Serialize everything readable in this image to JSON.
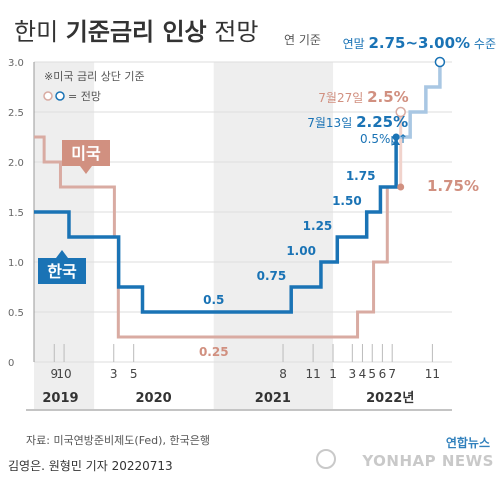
{
  "title": {
    "part1": "한미 ",
    "part2": "기준금리 인상",
    "part3": " 전망"
  },
  "unit_note": "연 기준",
  "legend": {
    "note": "※미국 금리 상단 기준",
    "forecast": "= 전망"
  },
  "series_labels": {
    "us": "미국",
    "korea": "한국"
  },
  "source": "자료: 미국연방준비제도(Fed), 한국은행",
  "byline": "김영은. 원형민 기자  20220713",
  "watermark": {
    "brand": "연합뉴스",
    "text": "YONHAP NEWS"
  },
  "colors": {
    "korea": "#1a73b5",
    "korea_forecast": "#a9c7e3",
    "us": "#d9aba2",
    "us_label_bg": "#d19080",
    "us_forecast": "#f1d3cc",
    "band": "#eeeeee",
    "grid": "#dddddd",
    "text": "#333333"
  },
  "annotations": [
    {
      "key": "kr_2025",
      "date": "2022-07-13",
      "value": 2.25,
      "parts": [
        {
          "t": "7월13일 ",
          "bold": false
        },
        {
          "t": "2.25%",
          "bold": true
        }
      ],
      "color": "#1a73b5"
    },
    {
      "key": "kr_step",
      "date": "2022-07-13",
      "value": 2.25,
      "parts": [
        {
          "t": "0.5%p↑",
          "bold": false
        }
      ],
      "color": "#1a73b5"
    },
    {
      "key": "us_jul",
      "date": "2022-07-27",
      "value": 2.5,
      "parts": [
        {
          "t": "7월27일 ",
          "bold": false
        },
        {
          "t": "2.5%",
          "bold": true
        }
      ],
      "color": "#d19080"
    },
    {
      "key": "year_end",
      "date": "2022-11-15",
      "value": 3.0,
      "parts": [
        {
          "t": "연말 ",
          "bold": false
        },
        {
          "t": "2.75~3.00%",
          "bold": true
        },
        {
          "t": " 수준",
          "bold": false
        }
      ],
      "color": "#1a73b5"
    },
    {
      "key": "us_now",
      "date": "2022-06-15",
      "value": 1.75,
      "parts": [
        {
          "t": "1.75%",
          "bold": true
        }
      ],
      "color": "#d19080"
    }
  ],
  "chart_data": {
    "type": "line",
    "title": "한미 기준금리 인상 전망",
    "ylim": [
      0,
      3.0
    ],
    "yticks": [
      0,
      0.5,
      1.0,
      1.5,
      2.0,
      2.5,
      3.0
    ],
    "ytick_labels": [
      "0",
      "0.5",
      "1.0",
      "1.5",
      "2.0",
      "2.5",
      "3.0"
    ],
    "xlim": [
      "2019-07-01",
      "2022-12-31"
    ],
    "shaded_years": [
      "2019",
      "2021"
    ],
    "xticks": [
      {
        "label": "9",
        "date": "2019-09-01"
      },
      {
        "label": "10",
        "date": "2019-10-01"
      },
      {
        "label": "3",
        "date": "2020-03-01"
      },
      {
        "label": "5",
        "date": "2020-05-01"
      },
      {
        "label": "8",
        "date": "2021-08-01"
      },
      {
        "label": "11",
        "date": "2021-11-01"
      },
      {
        "label": "1",
        "date": "2022-01-01"
      },
      {
        "label": "3",
        "date": "2022-03-01"
      },
      {
        "label": "4",
        "date": "2022-04-01"
      },
      {
        "label": "5",
        "date": "2022-05-01"
      },
      {
        "label": "6",
        "date": "2022-06-01"
      },
      {
        "label": "7",
        "date": "2022-07-01"
      },
      {
        "label": "11",
        "date": "2022-11-01"
      }
    ],
    "year_labels": [
      {
        "label": "2019",
        "date": "2019-09-20"
      },
      {
        "label": "2020",
        "date": "2020-07-01"
      },
      {
        "label": "2021",
        "date": "2021-07-01"
      },
      {
        "label": "2022년",
        "date": "2022-06-25"
      }
    ],
    "series": [
      {
        "name": "미국",
        "steps": [
          {
            "date": "2019-07-01",
            "value": 2.25
          },
          {
            "date": "2019-08-01",
            "value": 2.0
          },
          {
            "date": "2019-09-20",
            "value": 1.75
          },
          {
            "date": "2019-10-31",
            "value": 1.75
          },
          {
            "date": "2020-03-03",
            "value": 1.25
          },
          {
            "date": "2020-03-15",
            "value": 0.25
          },
          {
            "date": "2022-03-17",
            "value": 0.5
          },
          {
            "date": "2022-05-05",
            "value": 1.0
          },
          {
            "date": "2022-06-16",
            "value": 1.75
          }
        ],
        "end_date": "2022-07-27",
        "forecast": [
          {
            "date": "2022-07-27",
            "value": 2.5
          }
        ]
      },
      {
        "name": "한국",
        "steps": [
          {
            "date": "2019-07-01",
            "value": 1.5
          },
          {
            "date": "2019-07-18",
            "value": 1.5
          },
          {
            "date": "2019-10-16",
            "value": 1.25
          },
          {
            "date": "2020-03-16",
            "value": 0.75
          },
          {
            "date": "2020-05-28",
            "value": 0.5
          },
          {
            "date": "2021-08-26",
            "value": 0.75
          },
          {
            "date": "2021-11-25",
            "value": 1.0
          },
          {
            "date": "2022-01-14",
            "value": 1.25
          },
          {
            "date": "2022-04-14",
            "value": 1.5
          },
          {
            "date": "2022-05-26",
            "value": 1.75
          },
          {
            "date": "2022-07-13",
            "value": 2.25
          }
        ],
        "end_date": "2022-07-13",
        "forecast": [
          {
            "date": "2022-08-25",
            "value": 2.5
          },
          {
            "date": "2022-10-12",
            "value": 2.75
          },
          {
            "date": "2022-11-24",
            "value": 3.0
          }
        ],
        "forecast_end": "2022-12-31"
      }
    ],
    "data_labels": [
      {
        "series": "한국",
        "text": "0.5",
        "date": "2021-01-01",
        "value": 0.5
      },
      {
        "series": "미국",
        "text": "0.25",
        "date": "2021-01-01",
        "value": 0.25
      },
      {
        "series": "한국",
        "text": "0.75",
        "date": "2021-08-26",
        "value": 0.75
      },
      {
        "series": "한국",
        "text": "1.00",
        "date": "2021-11-25",
        "value": 1.0
      },
      {
        "series": "한국",
        "text": "1.25",
        "date": "2022-01-14",
        "value": 1.25
      },
      {
        "series": "한국",
        "text": "1.50",
        "date": "2022-04-14",
        "value": 1.5
      },
      {
        "series": "한국",
        "text": "1.75",
        "date": "2022-05-26",
        "value": 1.75
      }
    ]
  }
}
